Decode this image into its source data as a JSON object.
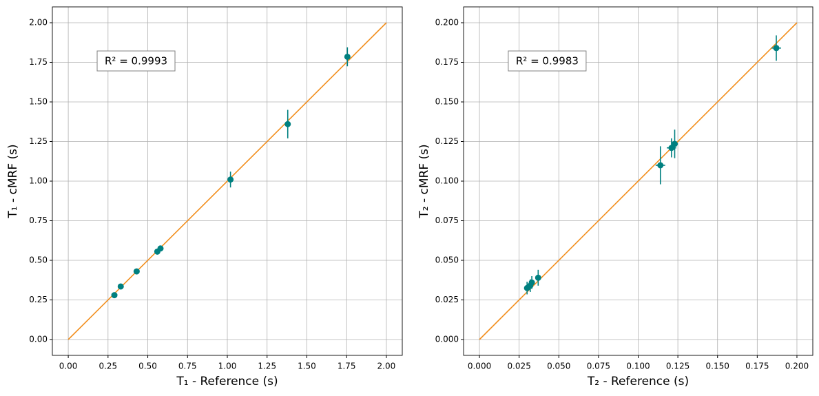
{
  "chart_data": [
    {
      "type": "scatter",
      "xlabel": "T₁ - Reference (s)",
      "ylabel": "T₁ - cMRF (s)",
      "annotation": "R² = 0.9993",
      "xlim": [
        -0.1,
        2.1
      ],
      "ylim": [
        -0.1,
        2.1
      ],
      "xticks": [
        {
          "value": 0,
          "label": "0.00"
        },
        {
          "value": 0.25,
          "label": "0.25"
        },
        {
          "value": 0.5,
          "label": "0.50"
        },
        {
          "value": 0.75,
          "label": "0.75"
        },
        {
          "value": 1,
          "label": "1.00"
        },
        {
          "value": 1.25,
          "label": "1.25"
        },
        {
          "value": 1.5,
          "label": "1.50"
        },
        {
          "value": 1.75,
          "label": "1.75"
        },
        {
          "value": 2,
          "label": "2.00"
        }
      ],
      "yticks": [
        {
          "value": 0,
          "label": "0.00"
        },
        {
          "value": 0.25,
          "label": "0.25"
        },
        {
          "value": 0.5,
          "label": "0.50"
        },
        {
          "value": 0.75,
          "label": "0.75"
        },
        {
          "value": 1,
          "label": "1.00"
        },
        {
          "value": 1.25,
          "label": "1.25"
        },
        {
          "value": 1.5,
          "label": "1.50"
        },
        {
          "value": 1.75,
          "label": "1.75"
        },
        {
          "value": 2,
          "label": "2.00"
        }
      ],
      "grid": true,
      "reference_line": {
        "x": [
          0,
          2
        ],
        "y": [
          0,
          2
        ],
        "color": "#f28e1c"
      },
      "series": [
        {
          "color": "#008080",
          "x": [
            0.29,
            0.33,
            0.43,
            0.56,
            0.58,
            1.02,
            1.38,
            1.755
          ],
          "y": [
            0.28,
            0.335,
            0.43,
            0.555,
            0.575,
            1.01,
            1.36,
            1.785
          ],
          "xerr": [
            0.005,
            0.005,
            0.005,
            0.005,
            0.005,
            0.005,
            0.005,
            0.01
          ],
          "yerr": [
            0.01,
            0.01,
            0.015,
            0.015,
            0.015,
            0.05,
            0.09,
            0.06
          ]
        }
      ]
    },
    {
      "type": "scatter",
      "xlabel": "T₂ - Reference (s)",
      "ylabel": "T₂ - cMRF (s)",
      "annotation": "R² = 0.9983",
      "xlim": [
        -0.01,
        0.21
      ],
      "ylim": [
        -0.01,
        0.21
      ],
      "xticks": [
        {
          "value": 0,
          "label": "0.000"
        },
        {
          "value": 0.025,
          "label": "0.025"
        },
        {
          "value": 0.05,
          "label": "0.050"
        },
        {
          "value": 0.075,
          "label": "0.075"
        },
        {
          "value": 0.1,
          "label": "0.100"
        },
        {
          "value": 0.125,
          "label": "0.125"
        },
        {
          "value": 0.15,
          "label": "0.150"
        },
        {
          "value": 0.175,
          "label": "0.175"
        },
        {
          "value": 0.2,
          "label": "0.200"
        }
      ],
      "yticks": [
        {
          "value": 0,
          "label": "0.000"
        },
        {
          "value": 0.025,
          "label": "0.025"
        },
        {
          "value": 0.05,
          "label": "0.050"
        },
        {
          "value": 0.075,
          "label": "0.075"
        },
        {
          "value": 0.1,
          "label": "0.100"
        },
        {
          "value": 0.125,
          "label": "0.125"
        },
        {
          "value": 0.15,
          "label": "0.150"
        },
        {
          "value": 0.175,
          "label": "0.175"
        },
        {
          "value": 0.2,
          "label": "0.200"
        }
      ],
      "grid": true,
      "reference_line": {
        "x": [
          0,
          0.2
        ],
        "y": [
          0,
          0.2
        ],
        "color": "#f28e1c"
      },
      "series": [
        {
          "color": "#008080",
          "x": [
            0.03,
            0.032,
            0.033,
            0.037,
            0.114,
            0.121,
            0.123,
            0.187
          ],
          "y": [
            0.0325,
            0.034,
            0.036,
            0.039,
            0.11,
            0.121,
            0.1235,
            0.184
          ],
          "xerr": [
            0.001,
            0.001,
            0.001,
            0.001,
            0.003,
            0.003,
            0.002,
            0.003
          ],
          "yerr": [
            0.004,
            0.004,
            0.004,
            0.005,
            0.012,
            0.006,
            0.009,
            0.008
          ]
        }
      ]
    }
  ]
}
